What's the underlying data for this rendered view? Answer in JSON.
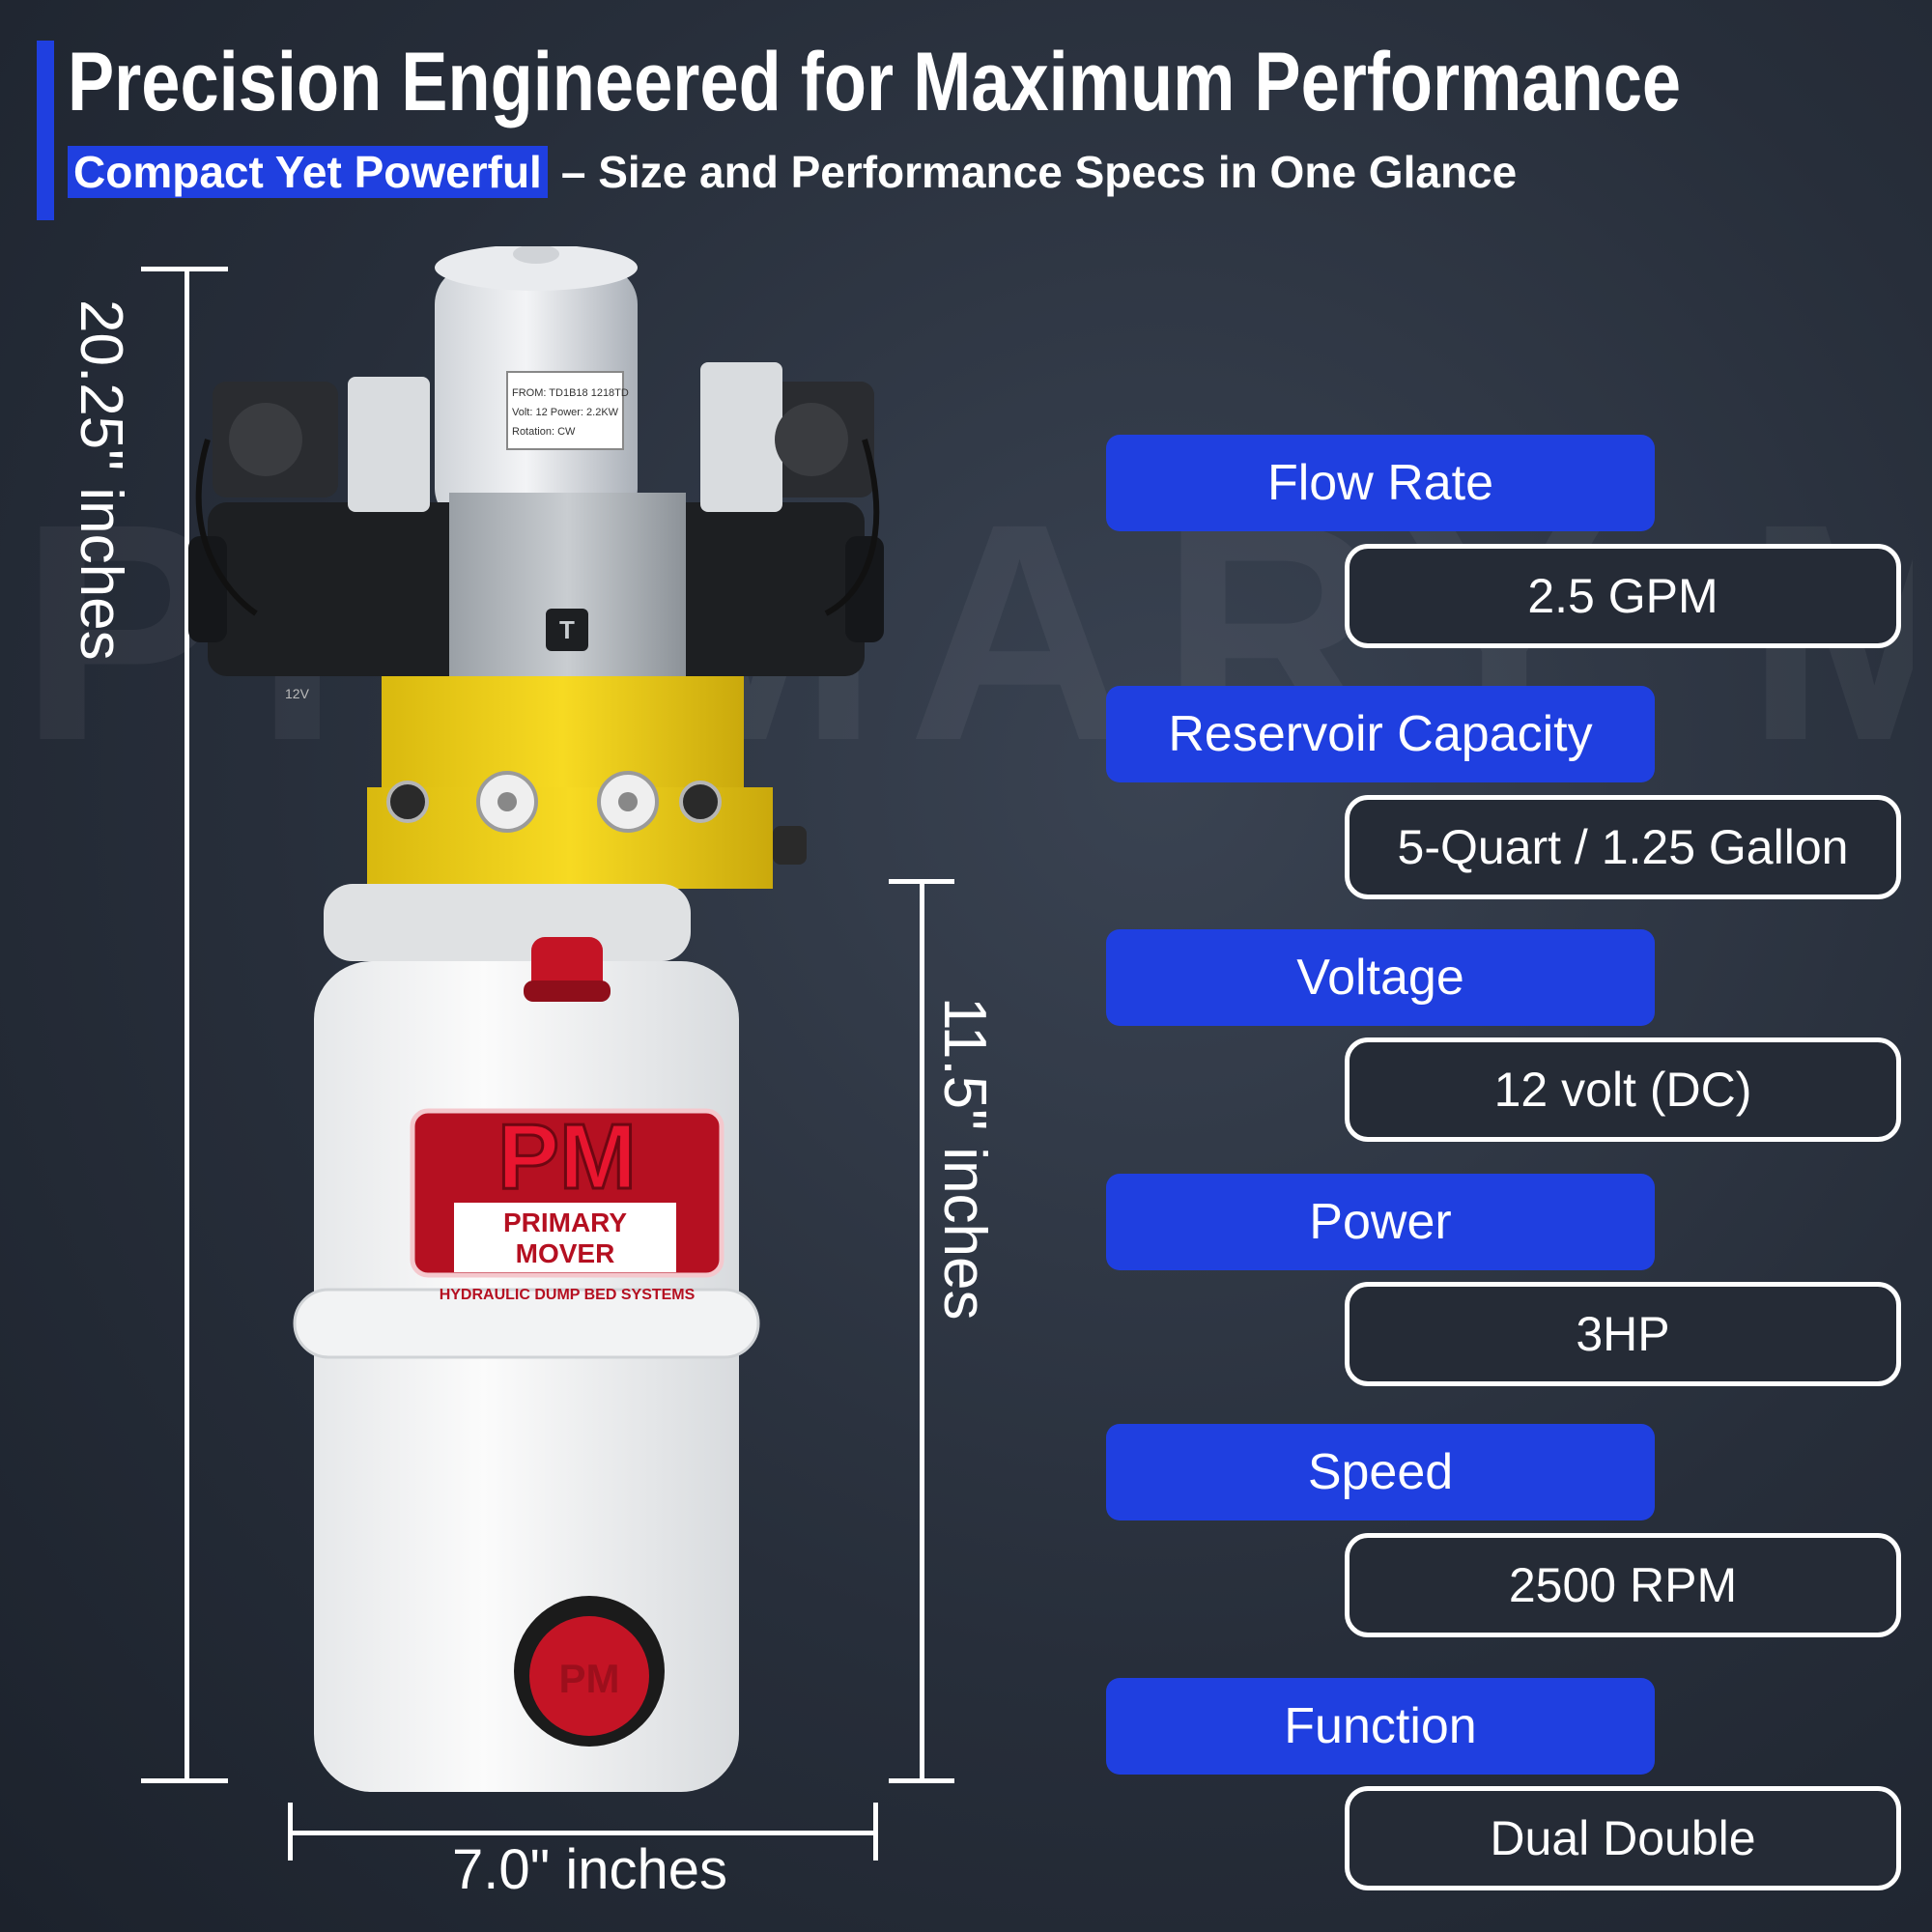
{
  "header": {
    "title": "Precision Engineered for Maximum Performance",
    "subtitle_highlight": "Compact Yet Powerful",
    "subtitle_rest": "– Size and Performance Specs in One Glance"
  },
  "background_watermark": "PRIMARY MOVER",
  "dimensions": {
    "total_height": "20.25\" inches",
    "reservoir_height": "11.5\" inches",
    "width": "7.0\" inches"
  },
  "product": {
    "logo_initials": "PM",
    "logo_line1": "PRIMARY",
    "logo_line2": "MOVER",
    "logo_line3": "HYDRAULIC DUMP BED SYSTEMS",
    "motor_label_line1": "FROM: TD1B18  1218TD",
    "motor_label_line2": "Volt: 12    Power: 2.2KW",
    "motor_label_line3": "Rotation: CW",
    "valve_marking": "T",
    "voltage_tag": "12V",
    "cap_logo": "PM"
  },
  "specs": [
    {
      "label": "Flow Rate",
      "value": "2.5 GPM"
    },
    {
      "label": "Reservoir Capacity",
      "value": "5-Quart / 1.25 Gallon"
    },
    {
      "label": "Voltage",
      "value": "12 volt (DC)"
    },
    {
      "label": "Power",
      "value": "3HP"
    },
    {
      "label": "Speed",
      "value": "2500 RPM"
    },
    {
      "label": "Function",
      "value": "Dual Double"
    }
  ],
  "colors": {
    "accent": "#1f3fe0",
    "background": "#272e3a",
    "text": "#ffffff",
    "logo_red": "#c8102e",
    "manifold_yellow": "#f2d21b"
  }
}
